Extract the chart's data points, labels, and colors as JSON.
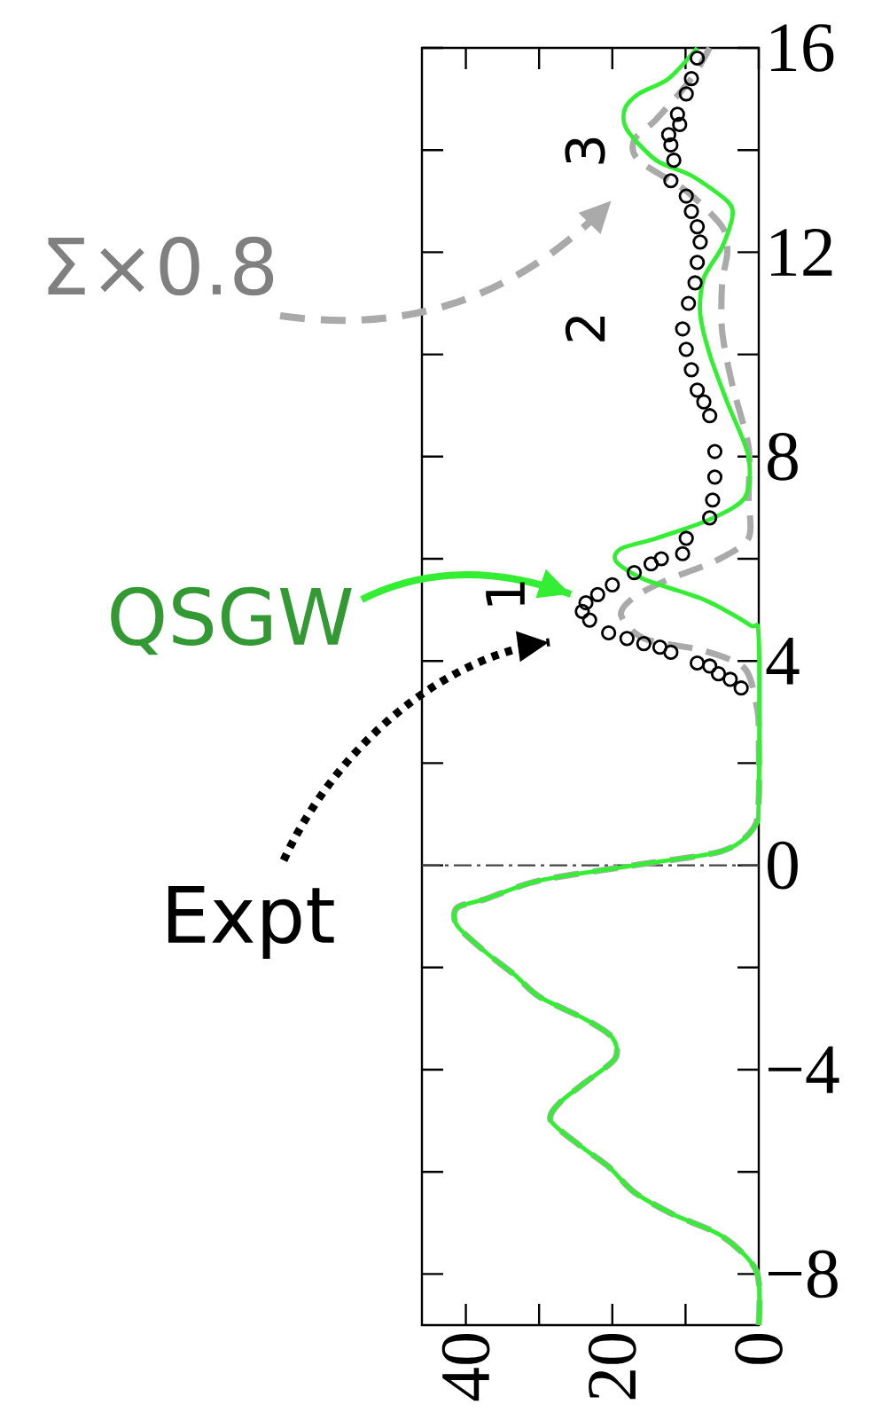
{
  "chart_data": {
    "type": "line",
    "xlim": [
      46,
      0
    ],
    "ylim": [
      -9,
      16
    ],
    "xticks": [
      40,
      {
        "value": 30,
        "label": null
      },
      20,
      {
        "value": 10,
        "label": null
      },
      0
    ],
    "yticks": [
      {
        "value": -8,
        "label": "−8"
      },
      {
        "value": -6,
        "label": null
      },
      {
        "value": -4,
        "label": "−4"
      },
      {
        "value": -2,
        "label": null
      },
      0,
      {
        "value": 2,
        "label": null
      },
      4,
      {
        "value": 6,
        "label": null
      },
      8,
      {
        "value": 10,
        "label": null
      },
      12,
      {
        "value": 14,
        "label": null
      },
      16
    ],
    "legend": "left",
    "ref_lines": [
      {
        "axis": "y",
        "value": 0,
        "color": "#444444",
        "line_style": "dashdot"
      }
    ],
    "annotations": [
      "1",
      "2",
      "3"
    ],
    "series": [
      {
        "name": "Σ×0.8",
        "color": "#aaaaaa",
        "line_style": "dashed",
        "x": [
          0,
          0.3,
          5,
          11.6,
          17,
          20.5,
          24.3,
          28.4,
          27.2,
          23.6,
          19.6,
          20,
          23.6,
          30,
          33.3,
          37.3,
          41.2,
          41.2,
          37.3,
          30,
          17,
          5,
          0.7,
          0,
          0,
          0.2,
          1.9,
          7.5,
          15.7,
          18.8,
          17,
          12.3,
          6,
          1.4,
          1.4,
          1.4,
          3.6,
          5,
          5,
          4.3,
          5,
          9.9,
          16.4,
          17,
          14,
          9.2,
          6.7
        ],
        "values": [
          -9,
          -7.95,
          -7.26,
          -6.84,
          -6.4,
          -5.9,
          -5.5,
          -5.0,
          -4.65,
          -4.24,
          -3.78,
          -3.37,
          -3.02,
          -2.57,
          -2.15,
          -1.7,
          -1.18,
          -0.83,
          -0.66,
          -0.3,
          0,
          0.28,
          0.73,
          1.3,
          2.5,
          3.05,
          3.85,
          4.2,
          4.44,
          4.9,
          5.25,
          5.6,
          5.95,
          6.4,
          7.2,
          8.2,
          9.4,
          10.45,
          11.4,
          12.0,
          12.5,
          13.2,
          13.8,
          14.2,
          14.6,
          15.4,
          16
        ]
      },
      {
        "name": "QSGW",
        "color": "#33ee33",
        "line_style": "solid",
        "x": [
          0,
          0.3,
          5,
          11.6,
          17,
          20.5,
          24.3,
          28.4,
          27.2,
          23.6,
          19.6,
          20,
          23.6,
          30,
          33.3,
          37.3,
          41.2,
          41.2,
          37.3,
          30,
          17,
          5,
          0.7,
          0,
          0,
          1.2,
          7.5,
          15.7,
          19.5,
          18.8,
          14,
          6.7,
          1.9,
          1.4,
          4.3,
          6.7,
          8,
          7.5,
          5,
          3.6,
          4.3,
          9.2,
          14,
          18,
          18.3,
          16.4,
          12.3,
          8.4
        ],
        "values": [
          -9,
          -7.95,
          -7.26,
          -6.84,
          -6.4,
          -5.9,
          -5.5,
          -5.0,
          -4.65,
          -4.24,
          -3.78,
          -3.37,
          -3.02,
          -2.57,
          -2.15,
          -1.7,
          -1.18,
          -0.83,
          -0.66,
          -0.3,
          0,
          0.28,
          0.73,
          1.3,
          4.44,
          4.7,
          5.2,
          5.6,
          5.95,
          6.2,
          6.4,
          6.77,
          7.2,
          8.0,
          9.06,
          10.0,
          10.8,
          11.5,
          12.1,
          12.7,
          13.0,
          13.5,
          13.8,
          14.4,
          14.8,
          15.1,
          15.4,
          16
        ]
      },
      {
        "name": "Expt",
        "type": "scatter",
        "color": "#000000",
        "marker": "circle",
        "x": [
          2.4,
          3.9,
          5.5,
          6.7,
          8.4,
          12,
          13.5,
          15.7,
          18,
          20.5,
          23.1,
          24.1,
          23.6,
          22,
          20,
          17,
          14.7,
          13.3,
          10.4,
          9.9,
          6.7,
          6.3,
          6,
          6,
          6.7,
          7.5,
          8.4,
          9.2,
          9.9,
          10.4,
          9.6,
          8.7,
          8.4,
          8,
          8.4,
          9.2,
          9.9,
          12,
          11.6,
          12,
          12.3,
          10.8,
          11.1,
          9.9,
          9.2,
          8.4
        ],
        "values": [
          3.47,
          3.64,
          3.75,
          3.9,
          3.96,
          4.17,
          4.27,
          4.34,
          4.44,
          4.55,
          4.8,
          4.97,
          5.14,
          5.3,
          5.49,
          5.73,
          5.9,
          6.0,
          6.1,
          6.4,
          6.8,
          7.15,
          7.6,
          8.1,
          8.8,
          9.07,
          9.3,
          9.7,
          10.1,
          10.5,
          11.0,
          11.4,
          11.8,
          12.2,
          12.5,
          12.8,
          13.1,
          13.4,
          13.8,
          14.1,
          14.3,
          14.5,
          14.7,
          15.1,
          15.4,
          15.8
        ]
      }
    ]
  }
}
